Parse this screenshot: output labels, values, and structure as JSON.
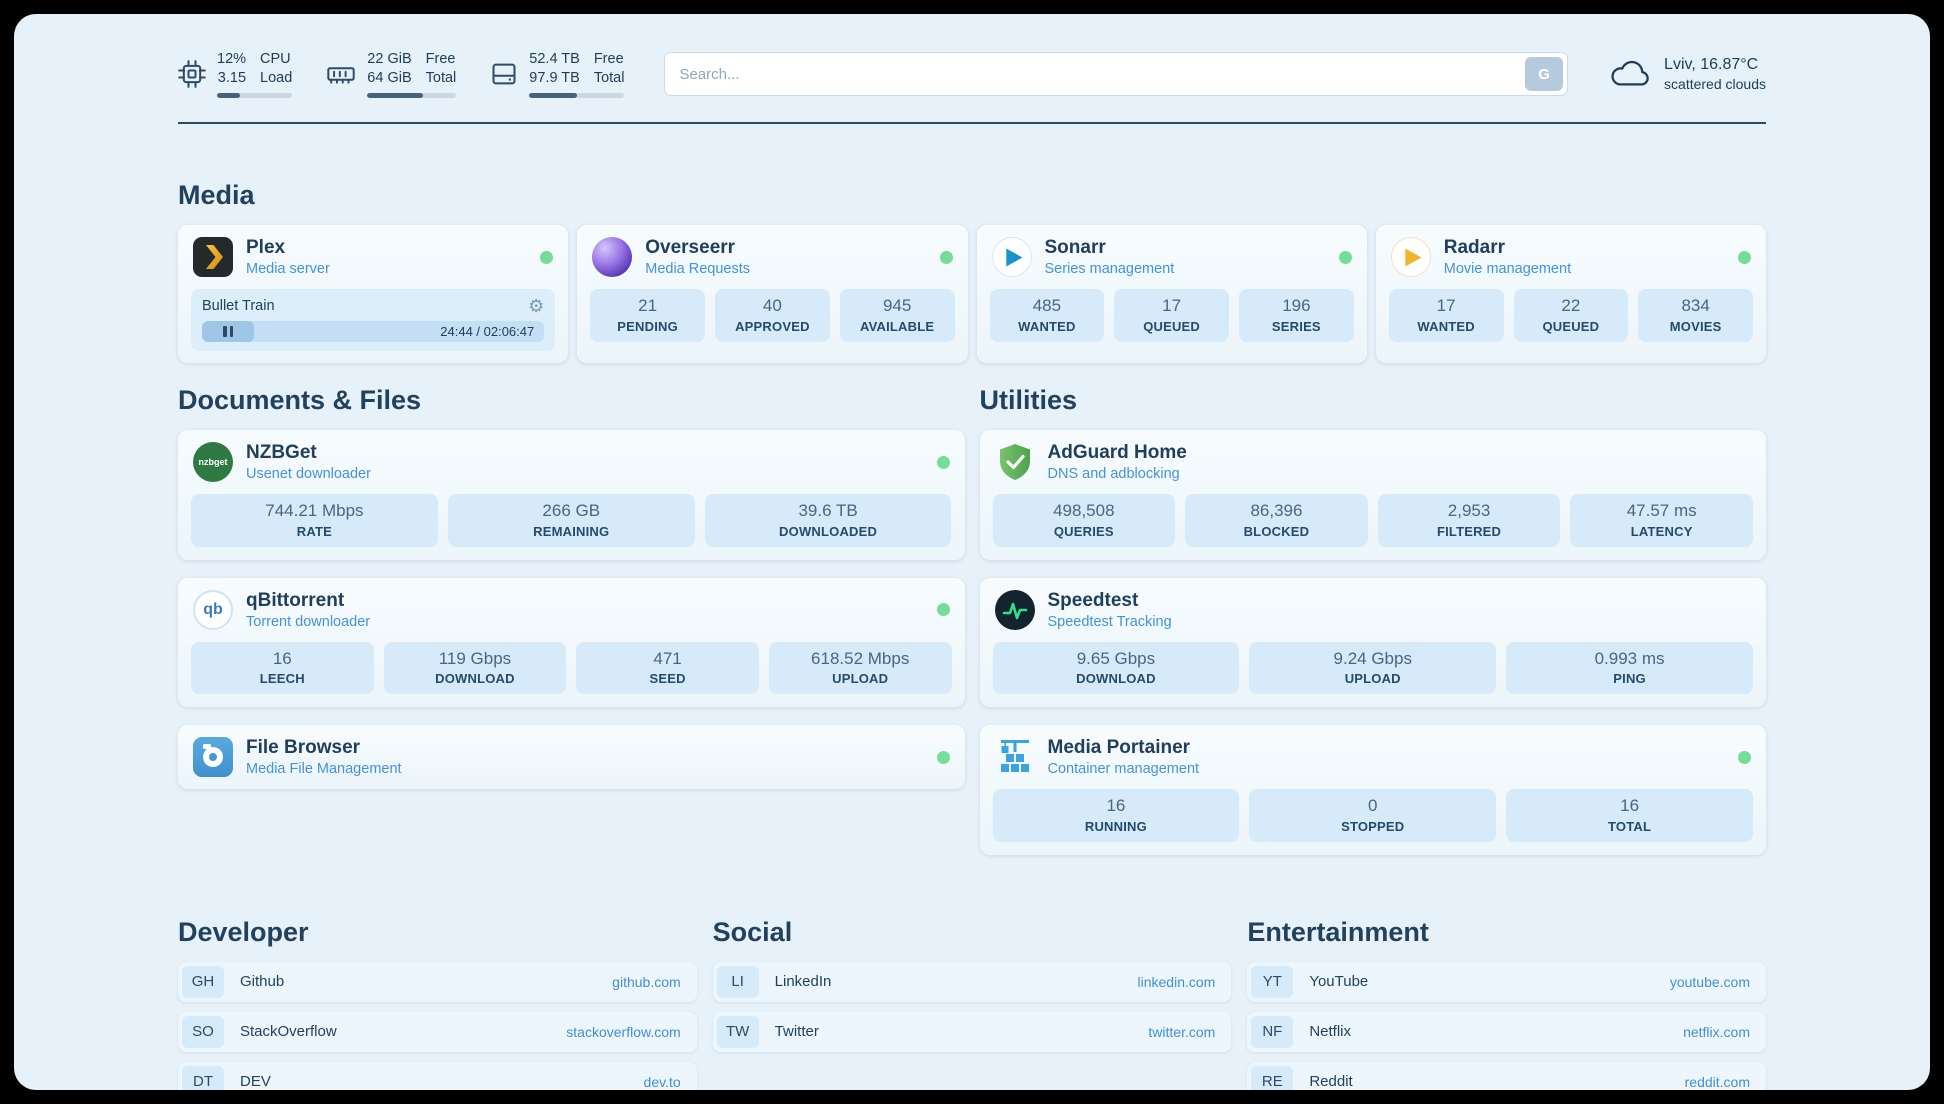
{
  "colors": {
    "page_bg": "#e7f1f9",
    "accent_blue": "#4293dd",
    "status_green": "#74dd98",
    "navy": "#1e3c5c",
    "stat_box_bg": "#d7eafa"
  },
  "icons": {
    "gear": "⚙"
  },
  "topbar": {
    "cpu": {
      "usage": "12%",
      "load": "3.15",
      "label_top": "CPU",
      "label_bottom": "Load",
      "progress": 30
    },
    "memory": {
      "free": "22 GiB",
      "total": "64 GiB",
      "label_top": "Free",
      "label_bottom": "Total",
      "progress": 63
    },
    "disk": {
      "free": "52.4 TB",
      "total": "97.9 TB",
      "label_top": "Free",
      "label_bottom": "Total",
      "progress": 50
    },
    "search": {
      "placeholder": "Search...",
      "button_label": "G"
    },
    "weather": {
      "location": "Lviv, 16.87°C",
      "condition": "scattered clouds"
    }
  },
  "media": {
    "title": "Media",
    "plex": {
      "name": "Plex",
      "subtitle": "Media server",
      "now_playing": "Bullet Train",
      "time": "24:44 / 02:06:47",
      "progress": 15
    },
    "overseerr": {
      "name": "Overseerr",
      "subtitle": "Media Requests",
      "stats": [
        {
          "value": "21",
          "label": "PENDING"
        },
        {
          "value": "40",
          "label": "APPROVED"
        },
        {
          "value": "945",
          "label": "AVAILABLE"
        }
      ]
    },
    "sonarr": {
      "name": "Sonarr",
      "subtitle": "Series management",
      "stats": [
        {
          "value": "485",
          "label": "WANTED"
        },
        {
          "value": "17",
          "label": "QUEUED"
        },
        {
          "value": "196",
          "label": "SERIES"
        }
      ]
    },
    "radarr": {
      "name": "Radarr",
      "subtitle": "Movie management",
      "stats": [
        {
          "value": "17",
          "label": "WANTED"
        },
        {
          "value": "22",
          "label": "QUEUED"
        },
        {
          "value": "834",
          "label": "MOVIES"
        }
      ]
    }
  },
  "documents": {
    "title": "Documents & Files",
    "nzbget": {
      "name": "NZBGet",
      "subtitle": "Usenet downloader",
      "icon_text": "nzbget",
      "stats": [
        {
          "value": "744.21 Mbps",
          "label": "RATE"
        },
        {
          "value": "266 GB",
          "label": "REMAINING"
        },
        {
          "value": "39.6 TB",
          "label": "DOWNLOADED"
        }
      ]
    },
    "qbittorrent": {
      "name": "qBittorrent",
      "subtitle": "Torrent downloader",
      "icon_text": "qb",
      "stats": [
        {
          "value": "16",
          "label": "LEECH"
        },
        {
          "value": "119 Gbps",
          "label": "DOWNLOAD"
        },
        {
          "value": "471",
          "label": "SEED"
        },
        {
          "value": "618.52 Mbps",
          "label": "UPLOAD"
        }
      ]
    },
    "filebrowser": {
      "name": "File Browser",
      "subtitle": "Media File Management"
    }
  },
  "utilities": {
    "title": "Utilities",
    "adguard": {
      "name": "AdGuard Home",
      "subtitle": "DNS and adblocking",
      "stats": [
        {
          "value": "498,508",
          "label": "QUERIES"
        },
        {
          "value": "86,396",
          "label": "BLOCKED"
        },
        {
          "value": "2,953",
          "label": "FILTERED"
        },
        {
          "value": "47.57 ms",
          "label": "LATENCY"
        }
      ]
    },
    "speedtest": {
      "name": "Speedtest",
      "subtitle": "Speedtest Tracking",
      "stats": [
        {
          "value": "9.65 Gbps",
          "label": "DOWNLOAD"
        },
        {
          "value": "9.24 Gbps",
          "label": "UPLOAD"
        },
        {
          "value": "0.993 ms",
          "label": "PING"
        }
      ]
    },
    "portainer": {
      "name": "Media Portainer",
      "subtitle": "Container management",
      "stats": [
        {
          "value": "16",
          "label": "RUNNING"
        },
        {
          "value": "0",
          "label": "STOPPED"
        },
        {
          "value": "16",
          "label": "TOTAL"
        }
      ]
    }
  },
  "bookmarks": {
    "developer": {
      "title": "Developer",
      "items": [
        {
          "abbr": "GH",
          "name": "Github",
          "domain": "github.com"
        },
        {
          "abbr": "SO",
          "name": "StackOverflow",
          "domain": "stackoverflow.com"
        },
        {
          "abbr": "DT",
          "name": "DEV",
          "domain": "dev.to"
        }
      ]
    },
    "social": {
      "title": "Social",
      "items": [
        {
          "abbr": "LI",
          "name": "LinkedIn",
          "domain": "linkedin.com"
        },
        {
          "abbr": "TW",
          "name": "Twitter",
          "domain": "twitter.com"
        }
      ]
    },
    "entertainment": {
      "title": "Entertainment",
      "items": [
        {
          "abbr": "YT",
          "name": "YouTube",
          "domain": "youtube.com"
        },
        {
          "abbr": "NF",
          "name": "Netflix",
          "domain": "netflix.com"
        },
        {
          "abbr": "RE",
          "name": "Reddit",
          "domain": "reddit.com"
        }
      ]
    }
  }
}
